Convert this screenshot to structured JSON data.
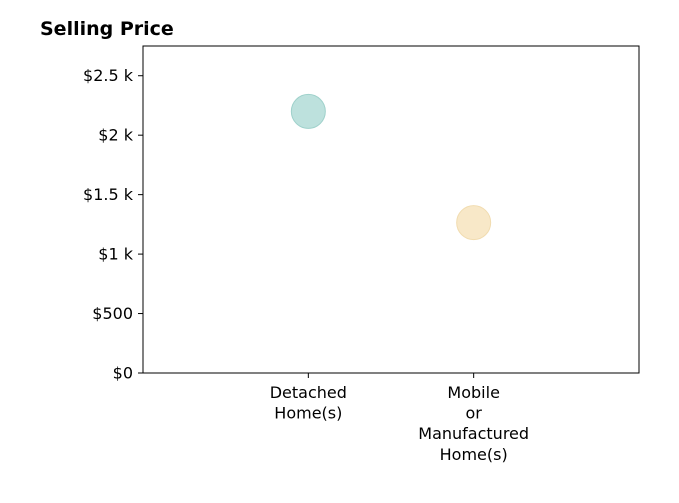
{
  "chart_data": {
    "type": "scatter",
    "title": "Selling Price",
    "xlabel": "",
    "ylabel": "",
    "categories": [
      [
        "Detached",
        "Home(s)"
      ],
      [
        "Mobile",
        "or",
        "Manufactured",
        "Home(s)"
      ]
    ],
    "series": [
      {
        "values": [
          2200,
          1265
        ],
        "colors": [
          "#bde1dd",
          "#f8e8c8"
        ],
        "edge_colors": [
          "#9fd1cb",
          "#f1dcb0"
        ]
      }
    ],
    "yticks": [
      0,
      500,
      1000,
      1500,
      2000,
      2500
    ],
    "ytick_labels": [
      "$0",
      "$500",
      "$1 k",
      "$1.5 k",
      "$2 k",
      "$2.5 k"
    ],
    "ylim": [
      0,
      2750
    ],
    "xlim": [
      -1,
      2
    ],
    "grid": false,
    "legend": "none"
  }
}
